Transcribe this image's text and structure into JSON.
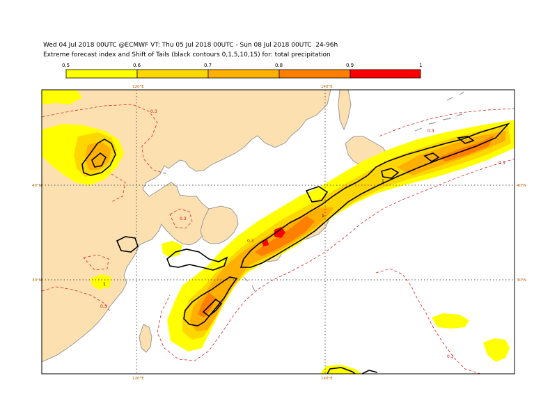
{
  "header": {
    "line1": "Wed 04 Jul 2018 00UTC @ECMWF VT: Thu 05 Jul 2018 00UTC - Sun 08 Jul 2018 00UTC  24-96h",
    "line2": "Extreme forecast index and Shift of Tails (black contours 0,1,5,10,15) for: total precipitation"
  },
  "legend": {
    "ticks": [
      "0.5",
      "0.6",
      "0.7",
      "0.8",
      "0.9",
      "1"
    ],
    "colors": [
      "#ffff00",
      "#ffd700",
      "#ffb000",
      "#ff7f00",
      "#ff0000"
    ]
  },
  "map": {
    "lon_labels": [
      "120°E",
      "140°E"
    ],
    "lat_labels": [
      "40°N",
      "30°N"
    ],
    "contour_labels": [
      "0.3",
      "0.3",
      "0.3",
      "0.3",
      "0.3",
      "0.3",
      "0.3"
    ],
    "sot_labels": [
      "1",
      "1",
      "1"
    ],
    "land_color": "#fde0b0",
    "sea_color": "#ffffff",
    "coast_color": "#9a9a9a"
  }
}
